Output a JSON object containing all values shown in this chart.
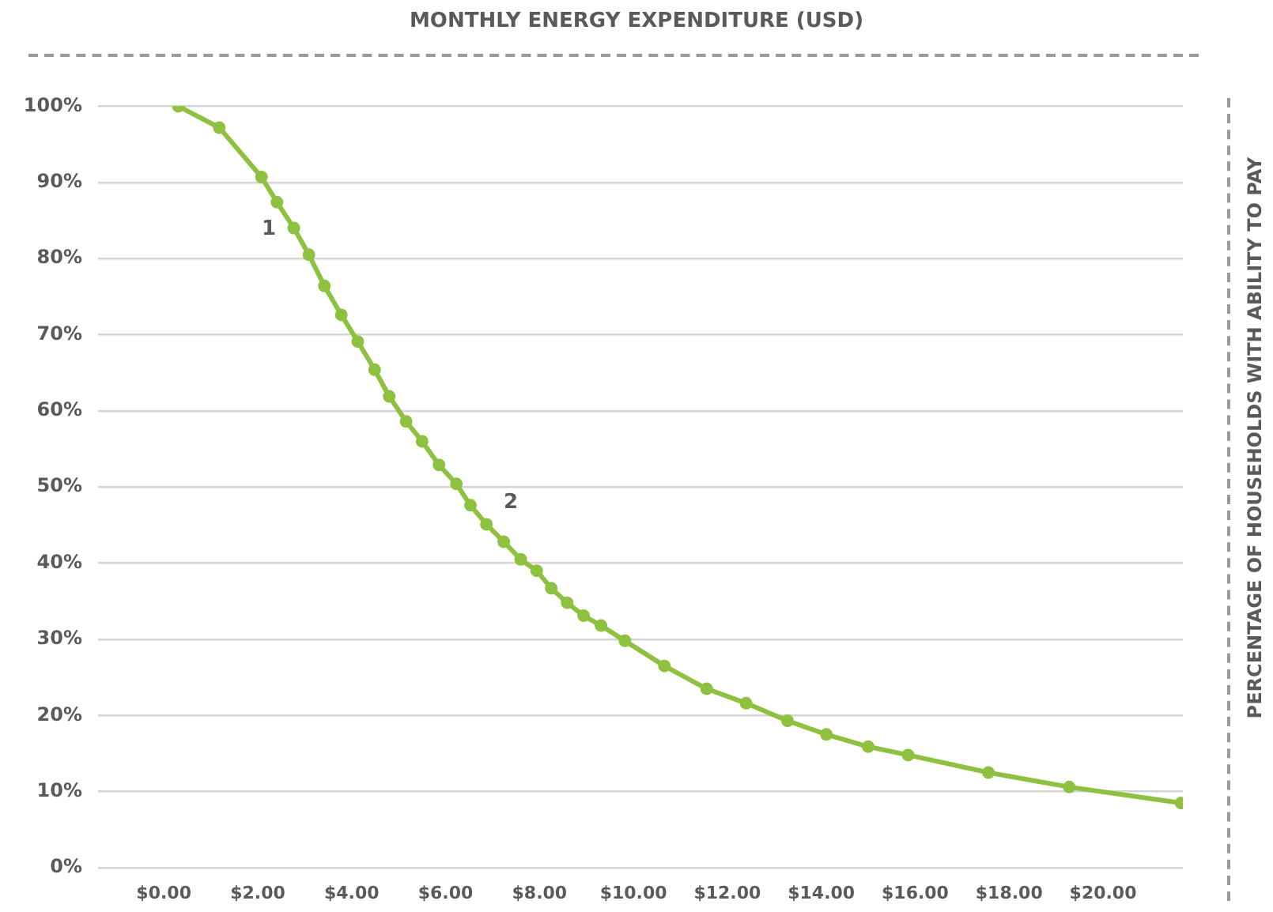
{
  "chart_data": {
    "type": "line",
    "title": "MONTHLY ENERGY EXPENDITURE (USD)",
    "ylabel": "PERCENTAGE OF HOUSEHOLDS WITH ABILITY TO PAY",
    "x": [
      0.31,
      1.18,
      2.08,
      2.41,
      2.77,
      3.09,
      3.42,
      3.78,
      4.13,
      4.49,
      4.8,
      5.16,
      5.5,
      5.86,
      6.23,
      6.53,
      6.87,
      7.24,
      7.6,
      7.94,
      8.25,
      8.59,
      8.94,
      9.31,
      9.82,
      10.66,
      11.56,
      12.4,
      13.28,
      14.11,
      15.0,
      15.85,
      17.56,
      19.28,
      21.66
    ],
    "series": [
      {
        "color": "#8dc13f",
        "values": [
          100,
          97.2,
          90.7,
          87.4,
          84.0,
          80.5,
          76.4,
          72.6,
          69.1,
          65.4,
          61.9,
          58.6,
          56.0,
          52.9,
          50.4,
          47.6,
          45.1,
          42.8,
          40.5,
          39.0,
          36.7,
          34.8,
          33.1,
          31.8,
          29.8,
          26.5,
          23.5,
          21.6,
          19.3,
          17.5,
          15.9,
          14.8,
          12.5,
          10.6,
          8.5
        ]
      }
    ],
    "xlim": [
      -1.4,
      21.7
    ],
    "xticks": [
      {
        "value": 0,
        "label": "$0.00"
      },
      {
        "value": 2,
        "label": "$2.00"
      },
      {
        "value": 4,
        "label": "$4.00"
      },
      {
        "value": 6,
        "label": "$6.00"
      },
      {
        "value": 8,
        "label": "$8.00"
      },
      {
        "value": 10,
        "label": "$10.00"
      },
      {
        "value": 12,
        "label": "$12.00"
      },
      {
        "value": 14,
        "label": "$14.00"
      },
      {
        "value": 16,
        "label": "$16.00"
      },
      {
        "value": 18,
        "label": "$18.00"
      },
      {
        "value": 20,
        "label": "$20.00"
      }
    ],
    "ylim": [
      0,
      100
    ],
    "yticks": [
      {
        "value": 0,
        "label": "0%"
      },
      {
        "value": 10,
        "label": "10%"
      },
      {
        "value": 20,
        "label": "20%"
      },
      {
        "value": 30,
        "label": "30%"
      },
      {
        "value": 40,
        "label": "40%"
      },
      {
        "value": 50,
        "label": "50%"
      },
      {
        "value": 60,
        "label": "60%"
      },
      {
        "value": 70,
        "label": "70%"
      },
      {
        "value": 80,
        "label": "80%"
      },
      {
        "value": 90,
        "label": "90%"
      },
      {
        "value": 100,
        "label": "100%"
      }
    ],
    "annotations": [
      "1",
      "2"
    ],
    "grid": "y",
    "legend": false,
    "marker": "circle",
    "line_style": "solid"
  }
}
